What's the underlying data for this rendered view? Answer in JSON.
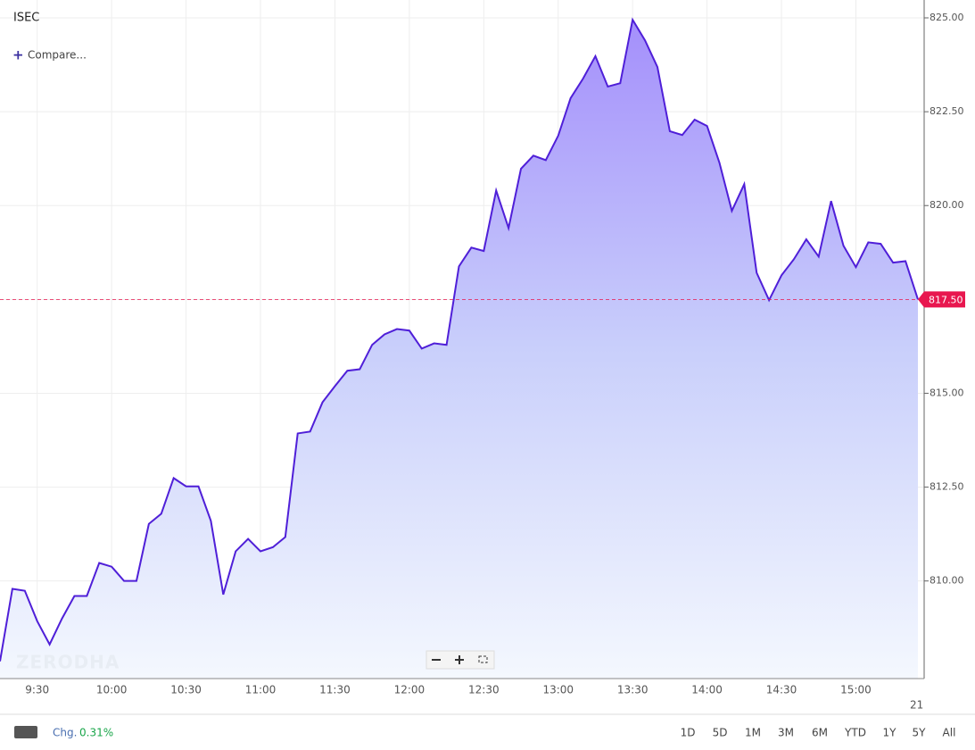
{
  "chart_data": {
    "type": "area",
    "title": "ISEC",
    "compare": "Compare...",
    "watermark": "ZERODHA",
    "categories": [
      null,
      null,
      null,
      "9:30",
      null,
      null,
      null,
      null,
      null,
      "10:00",
      null,
      null,
      null,
      null,
      null,
      "10:30",
      null,
      null,
      null,
      null,
      null,
      "11:00",
      null,
      null,
      null,
      null,
      null,
      "11:30",
      null,
      null,
      null,
      null,
      null,
      "12:00",
      null,
      null,
      null,
      null,
      null,
      "12:30",
      null,
      null,
      null,
      null,
      null,
      "13:00",
      null,
      null,
      null,
      null,
      null,
      "13:30",
      null,
      null,
      null,
      null,
      null,
      "14:00",
      null,
      null,
      null,
      null,
      null,
      "14:30",
      null,
      null,
      null,
      null,
      null,
      "15:00",
      null,
      null,
      null,
      null,
      null
    ],
    "date_label": "21",
    "series": [
      {
        "name": "ISEC",
        "color": "#4f1fd8",
        "values": [
          807.86,
          809.79,
          809.74,
          808.93,
          808.31,
          809.0,
          809.6,
          809.6,
          810.48,
          810.38,
          810.0,
          810.0,
          811.52,
          811.79,
          812.74,
          812.52,
          812.52,
          811.6,
          809.64,
          810.79,
          811.12,
          810.79,
          810.9,
          811.17,
          813.93,
          813.98,
          814.76,
          815.19,
          815.6,
          815.64,
          816.29,
          816.57,
          816.71,
          816.67,
          816.19,
          816.33,
          816.29,
          818.38,
          818.88,
          818.79,
          820.4,
          819.4,
          820.98,
          821.33,
          821.21,
          821.86,
          822.86,
          823.38,
          823.98,
          823.17,
          823.26,
          824.95,
          824.4,
          823.69,
          821.98,
          821.88,
          822.29,
          822.12,
          821.14,
          819.86,
          820.57,
          818.21,
          817.48,
          818.14,
          818.57,
          819.1,
          818.64,
          820.12,
          818.93,
          818.36,
          819.02,
          818.98,
          818.48,
          818.52,
          817.5
        ]
      }
    ],
    "ylim": [
      807.4,
      825.476
    ],
    "yticks": [
      {
        "value": 810,
        "label": "810.00"
      },
      {
        "value": 812.5,
        "label": "812.50"
      },
      {
        "value": 815,
        "label": "815.00"
      },
      {
        "value": 817.5,
        "label": "817.50"
      },
      {
        "value": 820,
        "label": "820.00"
      },
      {
        "value": 822.5,
        "label": "822.50"
      },
      {
        "value": 825,
        "label": "825.00"
      }
    ],
    "last_price": {
      "value": 817.5,
      "label": "817.50",
      "color": "#e8174f"
    },
    "grid": true,
    "change": {
      "label": "Chg.",
      "value": "0.31%"
    },
    "ranges": [
      "1D",
      "5D",
      "1M",
      "3M",
      "6M",
      "YTD",
      "1Y",
      "5Y",
      "All"
    ]
  }
}
